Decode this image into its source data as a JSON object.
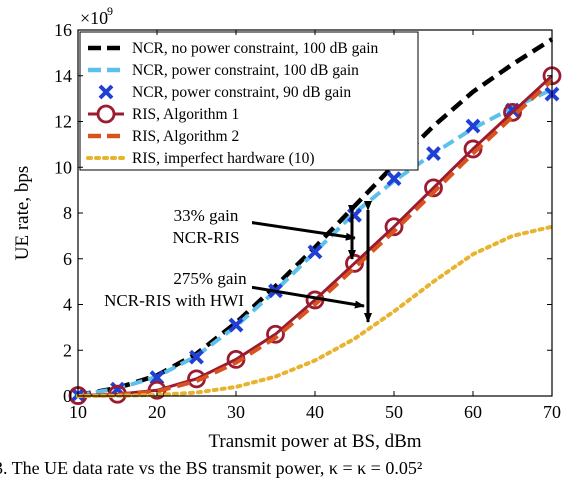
{
  "chart_data": {
    "type": "line",
    "title": "",
    "xlabel": "Transmit power at BS, dBm",
    "ylabel": "UE rate, bps",
    "xlim": [
      10,
      70
    ],
    "ylim": [
      0,
      16
    ],
    "y_exponent_label": "×10",
    "y_exponent_power": "9",
    "xticks": [
      "10",
      "20",
      "30",
      "40",
      "50",
      "60",
      "70"
    ],
    "yticks": [
      "0",
      "2",
      "4",
      "6",
      "8",
      "10",
      "12",
      "14",
      "16"
    ],
    "grid": false,
    "legend_position": "top-left",
    "series": [
      {
        "name": "NCR, no power constraint, 100 dB gain",
        "style": "dashed",
        "color": "#000000",
        "x": [
          10,
          15,
          20,
          25,
          30,
          35,
          40,
          45,
          50,
          55,
          60,
          65,
          70
        ],
        "y": [
          0.05,
          0.35,
          0.9,
          1.85,
          3.2,
          4.8,
          6.5,
          8.3,
          10.1,
          11.8,
          13.3,
          14.5,
          15.6
        ]
      },
      {
        "name": "NCR, power constraint, 100 dB gain",
        "style": "dashed",
        "color": "#5bc0eb",
        "x": [
          10,
          15,
          20,
          25,
          30,
          35,
          40,
          45,
          50,
          55,
          60,
          65,
          70
        ],
        "y": [
          0.05,
          0.32,
          0.85,
          1.75,
          3.05,
          4.6,
          6.3,
          8.0,
          9.4,
          10.6,
          11.7,
          12.6,
          13.4
        ]
      },
      {
        "name": "NCR, power constraint, 90 dB gain",
        "style": "markers",
        "color": "#1f3fd6",
        "x": [
          10,
          15,
          20,
          25,
          30,
          35,
          40,
          45,
          50,
          55,
          60,
          65,
          70
        ],
        "y": [
          0.05,
          0.3,
          0.8,
          1.7,
          3.1,
          4.6,
          6.3,
          7.9,
          9.5,
          10.6,
          11.8,
          12.5,
          13.2
        ]
      },
      {
        "name": "RIS, Algorithm 1",
        "style": "line-circle",
        "color": "#9b1b30",
        "x": [
          10,
          15,
          20,
          25,
          30,
          35,
          40,
          45,
          50,
          55,
          60,
          65,
          70
        ],
        "y": [
          0.02,
          0.08,
          0.25,
          0.75,
          1.6,
          2.7,
          4.2,
          5.8,
          7.4,
          9.1,
          10.8,
          12.4,
          14.0
        ]
      },
      {
        "name": "RIS, Algorithm 2",
        "style": "dashed",
        "color": "#d9531e",
        "x": [
          10,
          15,
          20,
          25,
          30,
          35,
          40,
          45,
          50,
          55,
          60,
          65,
          70
        ],
        "y": [
          0.0,
          0.05,
          0.2,
          0.65,
          1.45,
          2.55,
          4.0,
          5.6,
          7.2,
          8.9,
          10.6,
          12.2,
          13.8
        ]
      },
      {
        "name": "RIS, imperfect hardware (10)",
        "style": "dotted",
        "color": "#e8b32e",
        "x": [
          10,
          15,
          20,
          25,
          30,
          35,
          40,
          45,
          50,
          55,
          60,
          65,
          70
        ],
        "y": [
          0.0,
          0.01,
          0.05,
          0.15,
          0.4,
          0.85,
          1.55,
          2.5,
          3.7,
          5.0,
          6.2,
          7.0,
          7.4
        ]
      }
    ],
    "annotations": [
      {
        "lines": [
          "33% gain",
          "NCR-RIS"
        ],
        "arrow_from": [
          45.3,
          7.4
        ],
        "arrow_to_upper": [
          45.3,
          8.2
        ],
        "arrow_to_lower": [
          45.3,
          5.8
        ]
      },
      {
        "lines": [
          "275% gain",
          "NCR-RIS with HWI"
        ],
        "arrow_from": [
          46.5,
          5.0
        ],
        "arrow_to_upper": [
          46.5,
          8.2
        ],
        "arrow_to_lower": [
          46.5,
          2.6
        ]
      }
    ]
  },
  "caption": "3. The UE data rate vs the BS transmit power, κ  =  κ  =  0.05²"
}
